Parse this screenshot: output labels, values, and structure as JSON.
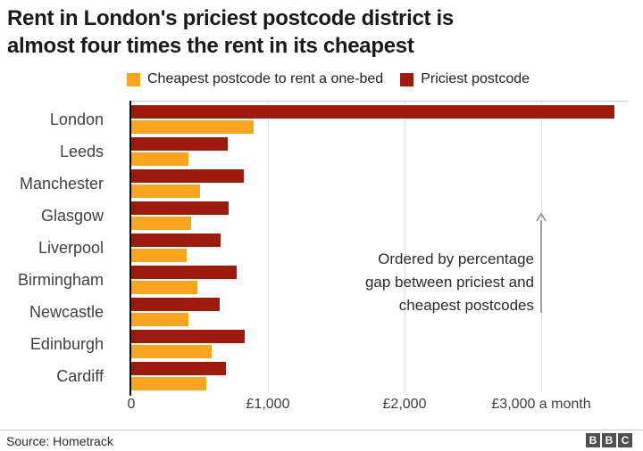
{
  "title": {
    "line1": "Rent in London's priciest postcode district is",
    "line2": "almost four times the rent in its cheapest"
  },
  "legend": {
    "items": [
      {
        "label": "Cheapest postcode to rent a one-bed",
        "color": "#f7a421"
      },
      {
        "label": "Priciest postcode",
        "color": "#9d1a0e"
      }
    ]
  },
  "annotation": {
    "line1": "Ordered by percentage",
    "line2": "gap between priciest and",
    "line3": "cheapest postcodes"
  },
  "chart_data": {
    "type": "bar",
    "orientation": "horizontal",
    "title": "Rent in London's priciest postcode district is almost four times the rent in its cheapest",
    "categories": [
      "London",
      "Leeds",
      "Manchester",
      "Glasgow",
      "Liverpool",
      "Birmingham",
      "Newcastle",
      "Edinburgh",
      "Cardiff"
    ],
    "series": [
      {
        "name": "Priciest postcode",
        "color": "#9d1a0e",
        "values": [
          3535,
          705,
          825,
          710,
          655,
          770,
          650,
          830,
          690
        ]
      },
      {
        "name": "Cheapest postcode to rent a one-bed",
        "color": "#f7a421",
        "values": [
          895,
          420,
          505,
          435,
          405,
          485,
          420,
          590,
          550
        ]
      }
    ],
    "xlabel": "£ a month",
    "ylabel": "",
    "xlim": [
      0,
      3750
    ],
    "tick_values": [
      0,
      1000,
      2000,
      3000
    ],
    "tick_labels": [
      "0",
      "£1,000",
      "£2,000",
      "£3,000 a month"
    ],
    "grid": true,
    "legend_position": "top",
    "note": "Ordered by percentage gap between priciest and cheapest postcodes"
  },
  "footer": {
    "source": "Source: Hometrack",
    "logo_letters": [
      "B",
      "B",
      "C"
    ]
  }
}
